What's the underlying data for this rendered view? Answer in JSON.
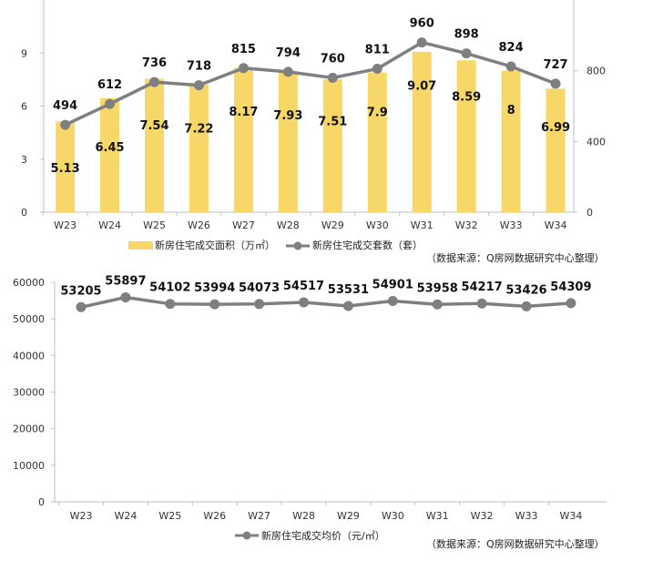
{
  "chart_data": [
    {
      "type": "bar",
      "categories": [
        "W23",
        "W24",
        "W25",
        "W26",
        "W27",
        "W28",
        "W29",
        "W30",
        "W31",
        "W32",
        "W33",
        "W34"
      ],
      "series": [
        {
          "name": "新房住宅成交面积（万㎡）",
          "type": "bar",
          "axis": "left",
          "values": [
            5.13,
            6.45,
            7.54,
            7.22,
            8.17,
            7.93,
            7.51,
            7.9,
            9.07,
            8.59,
            8.0,
            6.99
          ],
          "color": "#F7D767"
        },
        {
          "name": "新房住宅成交套数（套）",
          "type": "line",
          "axis": "right",
          "values": [
            494,
            612,
            736,
            718,
            815,
            794,
            760,
            811,
            960,
            898,
            824,
            727
          ],
          "color": "#7F7F7F"
        }
      ],
      "ylim_left": [
        0,
        12
      ],
      "yticks_left": [
        "0",
        "3",
        "6",
        "9"
      ],
      "ylim_right": [
        0,
        1200
      ],
      "yticks_right": [
        "0",
        "400",
        "800"
      ],
      "grid": false,
      "legend": "bottom",
      "source": "（数据来源：Q房网数据研究中心整理）"
    },
    {
      "type": "line",
      "categories": [
        "W23",
        "W24",
        "W25",
        "W26",
        "W27",
        "W28",
        "W29",
        "W30",
        "W31",
        "W32",
        "W33",
        "W34"
      ],
      "series": [
        {
          "name": "新房住宅成交均价（元/㎡）",
          "values": [
            53205,
            55897,
            54102,
            53994,
            54073,
            54517,
            53531,
            54901,
            53958,
            54217,
            53426,
            54309
          ],
          "color": "#7F7F7F"
        }
      ],
      "ylim": [
        0,
        60000
      ],
      "yticks": [
        "0",
        "10000",
        "20000",
        "30000",
        "40000",
        "50000",
        "60000"
      ],
      "grid": false,
      "legend": "bottom",
      "source": "（数据来源：Q房网数据研究中心整理）"
    }
  ]
}
